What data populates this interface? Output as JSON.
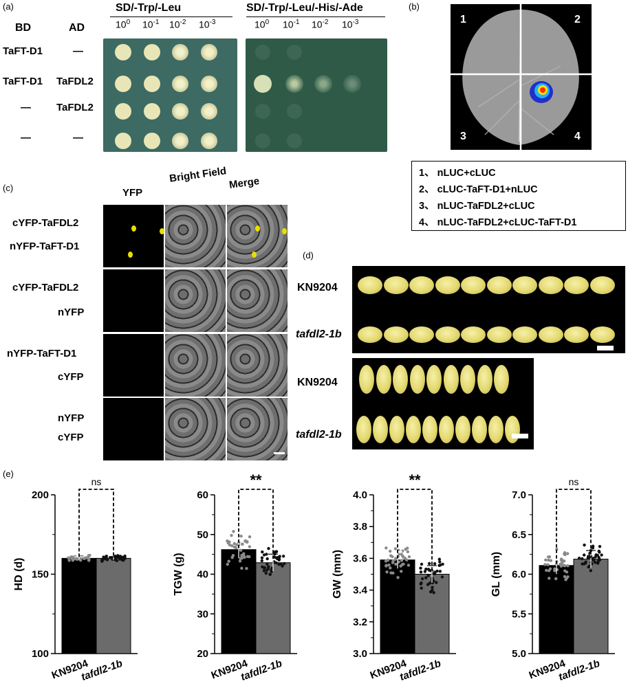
{
  "panel_a": {
    "tag": "(a)",
    "col_bd": "BD",
    "col_ad": "AD",
    "plate1_title": "SD/-Trp/-Leu",
    "plate2_title": "SD/-Trp/-Leu/-His/-Ade",
    "dilution_base": "10",
    "dilution_exp": [
      "0",
      "-1",
      "-2",
      "-3"
    ],
    "rows": [
      {
        "bd": "TaFT-D1",
        "ad": "—"
      },
      {
        "bd": "TaFT-D1",
        "ad": "TaFDL2"
      },
      {
        "bd": "—",
        "ad": "TaFDL2"
      },
      {
        "bd": "—",
        "ad": "—"
      }
    ]
  },
  "panel_b": {
    "tag": "(b)",
    "quadrants": [
      "1",
      "2",
      "3",
      "4"
    ],
    "legend": [
      "1、 nLUC+cLUC",
      "2、 cLUC-TaFT-D1+nLUC",
      "3、 nLUC-TaFDL2+cLUC",
      "4、 nLUC-TaFDL2+cLUC-TaFT-D1"
    ]
  },
  "panel_c": {
    "tag": "(c)",
    "columns": [
      "YFP",
      "Bright Field",
      "Merge"
    ],
    "rows": [
      {
        "line1": "cYFP-TaFDL2",
        "line2": "nYFP-TaFT-D1"
      },
      {
        "line1": "cYFP-TaFDL2",
        "line2": "nYFP"
      },
      {
        "line1": "nYFP-TaFT-D1",
        "line2": "cYFP"
      },
      {
        "line1": "nYFP",
        "line2": "cYFP"
      }
    ]
  },
  "panel_d": {
    "tag": "(d)",
    "top_labels": [
      "KN9204",
      "tafdl2-1b"
    ],
    "bottom_labels": [
      "KN9204",
      "tafdl2-1b"
    ]
  },
  "panel_e": {
    "tag": "(e)",
    "chart_data": [
      {
        "type": "bar",
        "ylabel": "HD (d)",
        "categories": [
          "KN9204",
          "tafdl2-1b"
        ],
        "values": [
          160,
          160
        ],
        "ylim": [
          100,
          200
        ],
        "yticks": [
          "100",
          "150",
          "200"
        ],
        "significance": "ns"
      },
      {
        "type": "bar",
        "ylabel": "TGW (g)",
        "categories": [
          "KN9204",
          "tafdl2-1b"
        ],
        "values": [
          46.2,
          42.9
        ],
        "ylim": [
          20,
          60
        ],
        "yticks": [
          "20",
          "30",
          "40",
          "50",
          "60"
        ],
        "significance": "**"
      },
      {
        "type": "bar",
        "ylabel": "GW (mm)",
        "categories": [
          "KN9204",
          "tafdl2-1b"
        ],
        "values": [
          3.59,
          3.5
        ],
        "ylim": [
          3.0,
          4.0
        ],
        "yticks": [
          "3.0",
          "3.2",
          "3.4",
          "3.6",
          "3.8",
          "4.0"
        ],
        "significance": "**"
      },
      {
        "type": "bar",
        "ylabel": "GL (mm)",
        "categories": [
          "KN9204",
          "tafdl2-1b"
        ],
        "values": [
          6.11,
          6.19
        ],
        "ylim": [
          5.0,
          7.0
        ],
        "yticks": [
          "5.0",
          "5.5",
          "6.0",
          "6.5",
          "7.0"
        ],
        "significance": "ns"
      }
    ]
  }
}
